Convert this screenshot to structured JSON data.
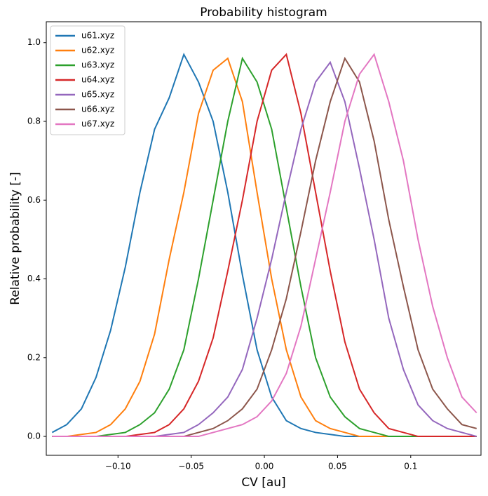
{
  "chart_data": {
    "type": "line",
    "title": "Probability histogram",
    "xlabel": "CV [au]",
    "ylabel": "Relative probability [-]",
    "x": [
      -0.145,
      -0.135,
      -0.125,
      -0.115,
      -0.105,
      -0.095,
      -0.085,
      -0.075,
      -0.065,
      -0.055,
      -0.045,
      -0.035,
      -0.025,
      -0.015,
      -0.005,
      0.005,
      0.015,
      0.025,
      0.035,
      0.045,
      0.055,
      0.065,
      0.075,
      0.085,
      0.095,
      0.105,
      0.115,
      0.125,
      0.135,
      0.145
    ],
    "series": [
      {
        "name": "u61.xyz",
        "color": "#1f77b4",
        "values": [
          0.01,
          0.03,
          0.07,
          0.15,
          0.27,
          0.43,
          0.62,
          0.78,
          0.86,
          0.97,
          0.9,
          0.8,
          0.62,
          0.41,
          0.22,
          0.1,
          0.04,
          0.02,
          0.01,
          0.005,
          0,
          0,
          0,
          0,
          0,
          0,
          0,
          0,
          0,
          0
        ]
      },
      {
        "name": "u62.xyz",
        "color": "#ff7f0e",
        "values": [
          0,
          0,
          0.005,
          0.01,
          0.03,
          0.07,
          0.14,
          0.26,
          0.45,
          0.62,
          0.82,
          0.93,
          0.96,
          0.85,
          0.62,
          0.4,
          0.22,
          0.1,
          0.04,
          0.02,
          0.01,
          0,
          0,
          0,
          0,
          0,
          0,
          0,
          0,
          0
        ]
      },
      {
        "name": "u63.xyz",
        "color": "#2ca02c",
        "values": [
          0,
          0,
          0,
          0,
          0.005,
          0.01,
          0.03,
          0.06,
          0.12,
          0.22,
          0.4,
          0.6,
          0.8,
          0.96,
          0.9,
          0.78,
          0.58,
          0.38,
          0.2,
          0.1,
          0.05,
          0.02,
          0.01,
          0,
          0,
          0,
          0,
          0,
          0,
          0
        ]
      },
      {
        "name": "u64.xyz",
        "color": "#d62728",
        "values": [
          0,
          0,
          0,
          0,
          0,
          0,
          0.005,
          0.01,
          0.03,
          0.07,
          0.14,
          0.25,
          0.42,
          0.6,
          0.8,
          0.93,
          0.97,
          0.82,
          0.62,
          0.42,
          0.24,
          0.12,
          0.06,
          0.02,
          0.01,
          0,
          0,
          0,
          0,
          0
        ]
      },
      {
        "name": "u65.xyz",
        "color": "#9467bd",
        "values": [
          0,
          0,
          0,
          0,
          0,
          0,
          0,
          0,
          0.005,
          0.01,
          0.03,
          0.06,
          0.1,
          0.17,
          0.3,
          0.45,
          0.62,
          0.78,
          0.9,
          0.95,
          0.85,
          0.68,
          0.5,
          0.3,
          0.17,
          0.08,
          0.04,
          0.02,
          0.01,
          0
        ]
      },
      {
        "name": "u66.xyz",
        "color": "#8c564b",
        "values": [
          0,
          0,
          0,
          0,
          0,
          0,
          0,
          0,
          0,
          0,
          0.01,
          0.02,
          0.04,
          0.07,
          0.12,
          0.22,
          0.35,
          0.52,
          0.7,
          0.85,
          0.96,
          0.9,
          0.75,
          0.55,
          0.38,
          0.22,
          0.12,
          0.07,
          0.03,
          0.02
        ]
      },
      {
        "name": "u67.xyz",
        "color": "#e377c2",
        "values": [
          0,
          0,
          0,
          0,
          0,
          0,
          0,
          0,
          0,
          0,
          0,
          0.01,
          0.02,
          0.03,
          0.05,
          0.09,
          0.16,
          0.28,
          0.45,
          0.62,
          0.8,
          0.92,
          0.97,
          0.85,
          0.7,
          0.5,
          0.33,
          0.2,
          0.1,
          0.06
        ]
      }
    ],
    "xlim": [
      -0.149,
      0.148
    ],
    "ylim": [
      -0.048,
      1.053
    ],
    "xticks": [
      {
        "value": -0.1,
        "label": "−0.10"
      },
      {
        "value": -0.05,
        "label": "−0.05"
      },
      {
        "value": 0,
        "label": "0.00"
      },
      0.05,
      0.1
    ],
    "yticks": [
      {
        "value": 0,
        "label": "0.0"
      },
      0.2,
      0.4,
      0.6,
      0.8,
      {
        "value": 1,
        "label": "1.0"
      }
    ],
    "grid": false,
    "legend": "upper left"
  }
}
